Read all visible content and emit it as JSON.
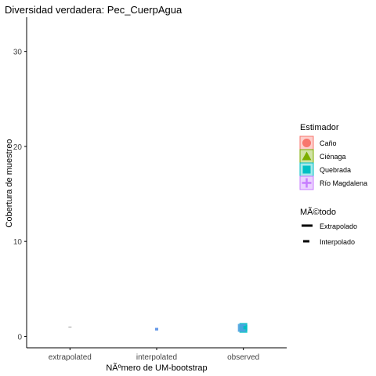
{
  "chart_data": {
    "type": "scatter",
    "title": "Diversidad verdadera: Pec_CuerpAgua",
    "xlabel": "NÃºmero de UM-bootstrap",
    "ylabel": "Cobertura de muestreo",
    "categories": [
      "extrapolated",
      "interpolated",
      "observed"
    ],
    "yticks": [
      0,
      10,
      20,
      30
    ],
    "ylim": [
      -1.2,
      33.6
    ],
    "grid": false,
    "legend_position": "right",
    "legend": {
      "estimator_title": "Estimador",
      "estimators": [
        {
          "label": "Caño",
          "color": "#F8766D",
          "shape": "circle"
        },
        {
          "label": "Ciénaga",
          "color": "#7CAE00",
          "shape": "triangle"
        },
        {
          "label": "Quebrada",
          "color": "#00BFC4",
          "shape": "square"
        },
        {
          "label": "Río Magdalena",
          "color": "#C77CFF",
          "shape": "plus"
        }
      ],
      "method_title": "MÃ©todo",
      "methods": [
        {
          "label": "Extrapolado",
          "style": "solid"
        },
        {
          "label": "Interpolado",
          "style": "dashed"
        }
      ]
    },
    "series": [
      {
        "category": "extrapolated",
        "marks": [
          {
            "y": 0.98,
            "color": "#999999",
            "kind": "tick"
          }
        ]
      },
      {
        "category": "interpolated",
        "marks": [
          {
            "y": 0.62,
            "color": "#6699E8",
            "kind": "segment",
            "y_end": 0.9
          }
        ]
      },
      {
        "category": "observed",
        "marks": [
          {
            "y": 1.0,
            "color": "#00BFC4",
            "kind": "square"
          },
          {
            "y": 0.8,
            "color": "#00BFC4",
            "kind": "square"
          },
          {
            "y": 0.9,
            "color": "#4FA3E0",
            "kind": "square"
          },
          {
            "y": 0.75,
            "color": "#00BFC4",
            "kind": "segment",
            "y_end": 1.1
          }
        ]
      }
    ]
  }
}
